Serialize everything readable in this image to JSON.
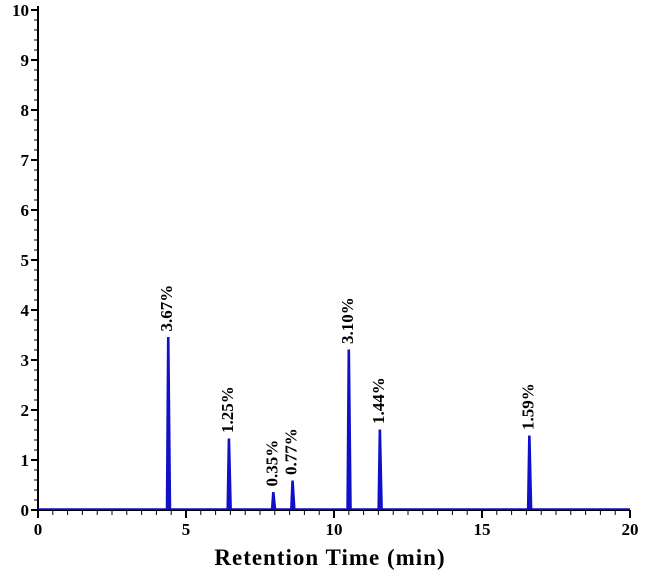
{
  "chart_data": {
    "type": "line",
    "title": "",
    "xlabel": "Retention Time (min)",
    "ylabel": "",
    "xlim": [
      0,
      20
    ],
    "ylim": [
      0,
      10
    ],
    "x_ticks": [
      "0",
      "5",
      "10",
      "15",
      "20"
    ],
    "y_ticks": [
      "0",
      "1",
      "2",
      "3",
      "4",
      "5",
      "6",
      "7",
      "8",
      "9",
      "10"
    ],
    "grid": false,
    "series_color": "#1010c8",
    "peaks": [
      {
        "x": 4.4,
        "y": 3.45,
        "label": "3.67%"
      },
      {
        "x": 6.45,
        "y": 1.42,
        "label": "1.25%"
      },
      {
        "x": 7.95,
        "y": 0.35,
        "label": "0.35%"
      },
      {
        "x": 8.6,
        "y": 0.58,
        "label": "0.77%"
      },
      {
        "x": 10.5,
        "y": 3.2,
        "label": "3.10%"
      },
      {
        "x": 11.55,
        "y": 1.6,
        "label": "1.44%"
      },
      {
        "x": 16.6,
        "y": 1.48,
        "label": "1.59%"
      }
    ]
  }
}
